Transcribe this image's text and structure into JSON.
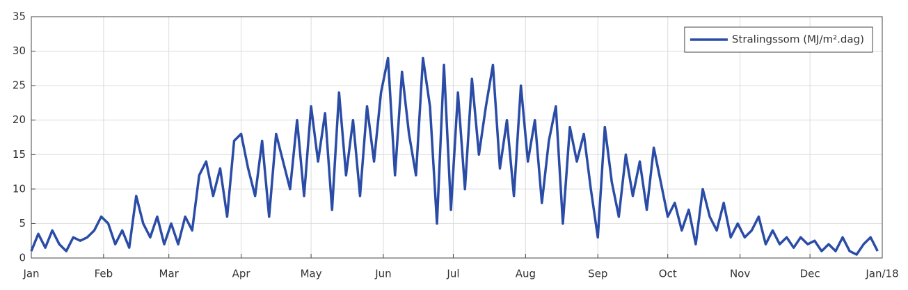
{
  "chart_data": {
    "type": "line",
    "x": [
      0,
      3,
      6,
      9,
      12,
      15,
      18,
      21,
      24,
      27,
      30,
      33,
      36,
      39,
      42,
      45,
      48,
      51,
      54,
      57,
      60,
      63,
      66,
      69,
      72,
      75,
      78,
      81,
      84,
      87,
      90,
      93,
      96,
      99,
      102,
      105,
      108,
      111,
      114,
      117,
      120,
      123,
      126,
      129,
      132,
      135,
      138,
      141,
      144,
      147,
      150,
      153,
      156,
      159,
      162,
      165,
      168,
      171,
      174,
      177,
      180,
      183,
      186,
      189,
      192,
      195,
      198,
      201,
      204,
      207,
      210,
      213,
      216,
      219,
      222,
      225,
      228,
      231,
      234,
      237,
      240,
      243,
      246,
      249,
      252,
      255,
      258,
      261,
      264,
      267,
      270,
      273,
      276,
      279,
      282,
      285,
      288,
      291,
      294,
      297,
      300,
      303,
      306,
      309,
      312,
      315,
      318,
      321,
      324,
      327,
      330,
      333,
      336,
      339,
      342,
      345,
      348,
      351,
      354,
      357,
      360,
      363
    ],
    "series": [
      {
        "name": "Stralingssom (MJ/m².dag)",
        "color": "#2a4ca6",
        "values": [
          1,
          3.5,
          1.5,
          4,
          2,
          1,
          3,
          2.5,
          3,
          4,
          6,
          5,
          2,
          4,
          1.5,
          9,
          5,
          3,
          6,
          2,
          5,
          2,
          6,
          4,
          12,
          14,
          9,
          13,
          6,
          17,
          18,
          13,
          9,
          17,
          6,
          18,
          14,
          10,
          20,
          9,
          22,
          14,
          21,
          7,
          24,
          12,
          20,
          9,
          22,
          14,
          24,
          29,
          12,
          27,
          18,
          12,
          29,
          22,
          5,
          28,
          7,
          24,
          10,
          26,
          15,
          22,
          28,
          13,
          20,
          9,
          25,
          14,
          20,
          8,
          17,
          22,
          5,
          19,
          14,
          18,
          10,
          3,
          19,
          11,
          6,
          15,
          9,
          14,
          7,
          16,
          11,
          6,
          8,
          4,
          7,
          2,
          10,
          6,
          4,
          8,
          3,
          5,
          3,
          4,
          6,
          2,
          4,
          2,
          3,
          1.5,
          3,
          2,
          2.5,
          1,
          2,
          1,
          3,
          1,
          0.5,
          2,
          3,
          1
        ]
      }
    ],
    "xlim": [
      0,
      365
    ],
    "xticks": [
      {
        "value": 0,
        "label": "Jan"
      },
      {
        "value": 31,
        "label": "Feb"
      },
      {
        "value": 59,
        "label": "Mar"
      },
      {
        "value": 90,
        "label": "Apr"
      },
      {
        "value": 120,
        "label": "May"
      },
      {
        "value": 151,
        "label": "Jun"
      },
      {
        "value": 181,
        "label": "Jul"
      },
      {
        "value": 212,
        "label": "Aug"
      },
      {
        "value": 243,
        "label": "Sep"
      },
      {
        "value": 273,
        "label": "Oct"
      },
      {
        "value": 304,
        "label": "Nov"
      },
      {
        "value": 334,
        "label": "Dec"
      },
      {
        "value": 365,
        "label": "Jan/18"
      }
    ],
    "ylim": [
      0,
      35
    ],
    "yticks": [
      0,
      5,
      10,
      15,
      20,
      25,
      30,
      35
    ],
    "grid": true,
    "legend": "upper right"
  }
}
